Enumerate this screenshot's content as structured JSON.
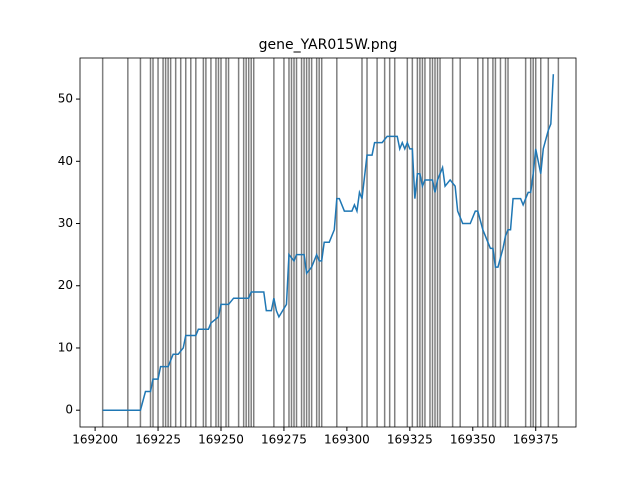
{
  "chart_data": {
    "type": "line",
    "title": "gene_YAR015W.png",
    "x": [
      169203,
      169218,
      169220,
      169222,
      169223,
      169225,
      169226,
      169229,
      169230,
      169231,
      169233,
      169235,
      169236,
      169240,
      169241,
      169245,
      169246,
      169249,
      169250,
      169253,
      169255,
      169261,
      169262,
      169267,
      169268,
      169270,
      169271,
      169272,
      169273,
      169276,
      169277,
      169279,
      169280,
      169283,
      169284,
      169286,
      169288,
      169289,
      169290,
      169291,
      169293,
      169295,
      169296,
      169297,
      169299,
      169302,
      169303,
      169304,
      169305,
      169306,
      169308,
      169310,
      169311,
      169314,
      169316,
      169320,
      169321,
      169322,
      169323,
      169324,
      169325,
      169326,
      169327,
      169328,
      169329,
      169330,
      169331,
      169334,
      169335,
      169336,
      169338,
      169339,
      169341,
      169343,
      169344,
      169346,
      169349,
      169351,
      169352,
      169354,
      169356,
      169357,
      169358,
      169359,
      169360,
      169362,
      169363,
      169364,
      169365,
      169366,
      169369,
      169370,
      169372,
      169373,
      169374,
      169375,
      169377,
      169378,
      169380,
      169381,
      169382
    ],
    "series": [
      {
        "color": "#1f77b4",
        "values": [
          0,
          0,
          3,
          3,
          5,
          5,
          7,
          7,
          8,
          9,
          9,
          10,
          12,
          12,
          13,
          13,
          14,
          15,
          17,
          17,
          18,
          18,
          19,
          19,
          16,
          16,
          18,
          16,
          15,
          17,
          25,
          24,
          25,
          25,
          22,
          23,
          25,
          24,
          24,
          27,
          27,
          29,
          34,
          34,
          32,
          32,
          33,
          32,
          35,
          34,
          41,
          41,
          43,
          43,
          44,
          44,
          42,
          43,
          42,
          43,
          42,
          42,
          34,
          38,
          38,
          36,
          37,
          37,
          35,
          37,
          39,
          36,
          37,
          36,
          32,
          30,
          30,
          32,
          32,
          29,
          27,
          26,
          26,
          23,
          23,
          26,
          28,
          29,
          29,
          34,
          34,
          33,
          35,
          35,
          38,
          42,
          38,
          42,
          45,
          46,
          54
        ]
      }
    ],
    "vlines": [
      169203,
      169213,
      169218,
      169222,
      169223,
      169225,
      169227,
      169228,
      169229,
      169230,
      169232,
      169234,
      169236,
      169238,
      169240,
      169243,
      169244,
      169246,
      169248,
      169249,
      169250,
      169252,
      169253,
      169257,
      169259,
      169260,
      169261,
      169262,
      169263,
      169271,
      169275,
      169277,
      169278,
      169279,
      169280,
      169282,
      169283,
      169284,
      169285,
      169286,
      169288,
      169289,
      169290,
      169296,
      169306,
      169308,
      169312,
      169315,
      169317,
      169319,
      169324,
      169326,
      169328,
      169329,
      169330,
      169331,
      169333,
      169334,
      169335,
      169336,
      169337,
      169342,
      169345,
      169352,
      169354,
      169356,
      169358,
      169359,
      169361,
      169363,
      169364,
      169371,
      169373,
      169374,
      169375,
      169377,
      169380,
      169384
    ],
    "vline_color": "#808080",
    "xlim": [
      169194,
      169391
    ],
    "xticks": [
      169200,
      169225,
      169250,
      169275,
      169300,
      169325,
      169350,
      169375
    ],
    "ylim": [
      -2.7,
      56.6
    ],
    "yticks": [
      0,
      10,
      20,
      30,
      40,
      50
    ]
  }
}
